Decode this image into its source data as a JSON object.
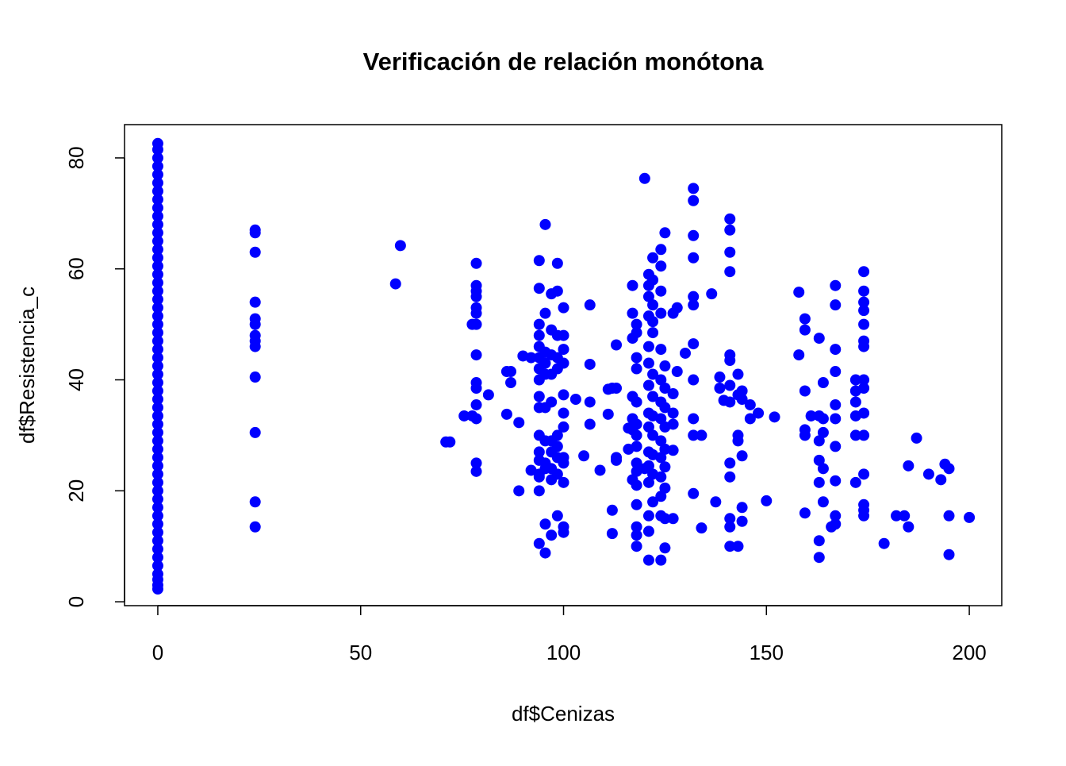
{
  "chart_data": {
    "type": "scatter",
    "title": "Verificación de relación monótona",
    "xlabel": "df$Cenizas",
    "ylabel": "df$Resistencia_c",
    "color": "#0000ff",
    "xlim": [
      -8.2,
      208
    ],
    "ylim": [
      -0.7,
      86
    ],
    "xticks": [
      0,
      50,
      100,
      150,
      200
    ],
    "yticks": [
      0,
      20,
      40,
      60,
      80
    ],
    "x": [
      0,
      0,
      0,
      0,
      0,
      0,
      0,
      0,
      0,
      0,
      0,
      0,
      0,
      0,
      0,
      0,
      0,
      0,
      0,
      0,
      0,
      0,
      0,
      0,
      0,
      0,
      0,
      0,
      0,
      0,
      0,
      0,
      0,
      0,
      0,
      0,
      0,
      0,
      0,
      0,
      0,
      0,
      0,
      0,
      0,
      0,
      0,
      0,
      0,
      0,
      0,
      0,
      0,
      0,
      0,
      0,
      24,
      24,
      24,
      24,
      24,
      24,
      24,
      24,
      24,
      24,
      24,
      24,
      24,
      58.6,
      59.8,
      71,
      72,
      75.5,
      77.5,
      77.5,
      78.5,
      78.5,
      78.5,
      78.5,
      78.5,
      78.5,
      78.5,
      78.5,
      78.5,
      78.5,
      78.5,
      78.5,
      78.5,
      78.5,
      81.5,
      86,
      86,
      87,
      87,
      89,
      89,
      90,
      92,
      92,
      94,
      94,
      94,
      94,
      94,
      94,
      94,
      94,
      94,
      94,
      94,
      94,
      94,
      94,
      94,
      94,
      94,
      95.5,
      95.5,
      95.5,
      95.5,
      95.5,
      95.5,
      95.5,
      95.5,
      95.5,
      95.5,
      95.5,
      97,
      97,
      97,
      97,
      97,
      97,
      97,
      97,
      97,
      97,
      98.5,
      98.5,
      98.5,
      98.5,
      98.5,
      98.5,
      98.5,
      98.5,
      98.5,
      98.5,
      100,
      100,
      100,
      100,
      100,
      100,
      100,
      100,
      100,
      100,
      100,
      100,
      103,
      105,
      106.5,
      106.5,
      106.5,
      106.5,
      109,
      111,
      111,
      112,
      112,
      112,
      113,
      113,
      113,
      113,
      116,
      116,
      117,
      117,
      117,
      117,
      117,
      117,
      117,
      118,
      118,
      118,
      118,
      118,
      118,
      118,
      118,
      118,
      118,
      118,
      118,
      118,
      118,
      118,
      120,
      120,
      121,
      121,
      121,
      121,
      121,
      121,
      121,
      121,
      121,
      121,
      121,
      121,
      121,
      121,
      121,
      122,
      122,
      122,
      122,
      122,
      122,
      122,
      122,
      122,
      122,
      122,
      122,
      124,
      124,
      124,
      124,
      124,
      124,
      124,
      124,
      124,
      124,
      124,
      124,
      124,
      124,
      125,
      125,
      125,
      125,
      125,
      125,
      125,
      125,
      125,
      125,
      127,
      127,
      127,
      127,
      127,
      127,
      128,
      128,
      130,
      132,
      132,
      132,
      132,
      132,
      132,
      132,
      132,
      132,
      132,
      132,
      134,
      134,
      136.5,
      137.5,
      138.5,
      138.5,
      139.5,
      141,
      141,
      141,
      141,
      141,
      141,
      141,
      141,
      141,
      141,
      141,
      141,
      141,
      143,
      143,
      143,
      143,
      143,
      144,
      144,
      144,
      144,
      144,
      146,
      146,
      148,
      150,
      152,
      158,
      158,
      159.5,
      159.5,
      159.5,
      159.5,
      159.5,
      159.5,
      161,
      163,
      163,
      163,
      163,
      163,
      163,
      163,
      164,
      164,
      164,
      164,
      164,
      166,
      167,
      167,
      167,
      167,
      167,
      167,
      167,
      167,
      167,
      167,
      172,
      172,
      172,
      172,
      172,
      172,
      174,
      174,
      174,
      174,
      174,
      174,
      174,
      174,
      174,
      174,
      174,
      174,
      174,
      174,
      174,
      179,
      182,
      184,
      185,
      185,
      187,
      190,
      193,
      194,
      195,
      195,
      195,
      200
    ],
    "values": [
      2.3,
      3,
      4,
      5,
      6.5,
      8,
      9.5,
      11,
      12.5,
      14,
      15.5,
      17,
      18.5,
      20,
      21.5,
      23,
      24.5,
      26,
      27.5,
      29,
      30.5,
      32,
      33.5,
      35,
      36.5,
      38,
      39.5,
      41,
      42.5,
      44,
      45.5,
      47,
      48.5,
      50,
      51.5,
      53,
      54.5,
      56,
      57.5,
      59,
      60.5,
      62,
      63.5,
      65,
      66.5,
      68,
      69.5,
      71,
      72.5,
      74,
      75.5,
      77,
      78.5,
      80,
      81.5,
      82.6,
      67,
      66.5,
      63,
      54,
      51,
      50,
      48,
      47,
      46,
      40.5,
      30.5,
      18,
      13.5,
      57.3,
      64.2,
      28.8,
      28.8,
      33.5,
      50,
      33.5,
      61,
      57,
      56,
      55,
      53,
      52,
      50,
      44.5,
      39.5,
      38.5,
      35.5,
      33,
      25,
      23.5,
      37.3,
      41.5,
      33.8,
      41.5,
      39.5,
      20,
      32.3,
      44.3,
      23.7,
      44,
      61.5,
      56.5,
      50,
      48,
      46,
      44,
      42,
      40,
      37,
      35,
      30,
      27,
      25.5,
      23,
      22.5,
      20,
      10.5,
      68,
      52,
      45,
      43,
      41,
      35,
      29,
      25,
      24,
      14,
      8.8,
      55.5,
      49,
      44.5,
      41,
      36,
      29,
      27,
      24,
      22,
      12,
      61,
      56,
      48,
      44,
      42,
      30,
      28,
      26,
      23,
      15.5,
      53,
      48,
      45.5,
      43,
      37.3,
      34,
      31.5,
      26,
      25,
      21.5,
      13.5,
      12.5,
      36.5,
      26.3,
      53.5,
      42.8,
      36,
      32,
      23.7,
      33.8,
      38.3,
      16.5,
      12.3,
      38.5,
      46.3,
      26,
      25.5,
      38.5,
      31.3,
      27.5,
      52,
      57,
      47.5,
      37,
      33,
      22,
      31,
      50,
      48.5,
      44,
      42,
      36,
      30,
      28,
      25,
      23.5,
      21,
      17.5,
      13.5,
      12,
      10,
      32,
      76.3,
      24,
      59,
      57,
      55,
      51.5,
      46,
      43,
      39,
      34,
      31.5,
      27,
      24.5,
      21.5,
      15.5,
      12.7,
      7.5,
      62,
      58,
      53.5,
      50.5,
      48.5,
      41,
      37,
      33.5,
      30,
      26.5,
      23,
      18,
      63.5,
      60.5,
      56,
      52,
      45.5,
      40,
      36,
      33,
      29,
      26,
      22.5,
      19,
      15.5,
      7.5,
      66.5,
      42.5,
      38.5,
      35,
      31.5,
      27.5,
      24.3,
      20.5,
      15,
      9.7,
      52,
      37.5,
      34,
      32,
      27.3,
      15,
      53,
      41.5,
      44.8,
      74.5,
      72.3,
      66,
      62,
      55,
      53.5,
      46.5,
      40,
      33,
      30,
      19.5,
      13.3,
      30,
      55.5,
      18,
      40.5,
      38.5,
      36.3,
      69,
      67,
      63,
      59.5,
      44.5,
      43.5,
      39,
      36,
      25,
      22.5,
      15,
      13.5,
      10,
      41,
      37.3,
      30,
      29,
      10,
      38,
      36.5,
      26.3,
      17,
      14.5,
      35.5,
      33,
      34,
      18.2,
      33.3,
      55.8,
      44.5,
      51,
      49,
      38,
      31,
      30,
      16,
      33.5,
      47.5,
      33.5,
      29,
      25.5,
      21.5,
      11,
      8,
      39.5,
      33,
      30.5,
      24,
      18,
      13.5,
      57,
      53.5,
      45.5,
      41.5,
      35.5,
      33,
      28,
      21.8,
      15.5,
      14,
      40,
      38,
      36,
      33.5,
      30,
      21.5,
      59.5,
      56,
      54,
      52.5,
      50,
      47,
      46,
      40,
      38.5,
      34,
      30,
      23,
      17.5,
      16.5,
      15.5,
      10.5,
      15.5,
      15.5,
      24.5,
      13.5,
      29.5,
      23,
      22,
      24.8,
      24,
      15.5,
      8.5,
      15.2
    ]
  }
}
